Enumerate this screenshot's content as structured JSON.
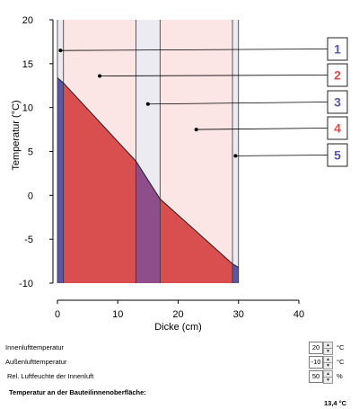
{
  "chart_data": {
    "type": "area",
    "title": "",
    "xlabel": "Dicke (cm)",
    "ylabel": "Temperatur (°C)",
    "xlim": [
      0,
      40
    ],
    "ylim": [
      -10,
      20
    ],
    "xticks": [
      "0",
      "10",
      "20",
      "30",
      "40"
    ],
    "yticks": [
      "20",
      "15",
      "10",
      "5",
      "0",
      "-5",
      "-10"
    ],
    "grid": false,
    "layers": [
      {
        "x": [
          0,
          1
        ],
        "color_bg": "#ecebf2",
        "color_fill": "#5a58a6"
      },
      {
        "x": [
          1,
          13
        ],
        "color_bg": "#fbe5e5",
        "color_fill": "#d94e4e"
      },
      {
        "x": [
          13,
          17
        ],
        "color_bg": "#ecebf2",
        "color_fill": "#8e4e8c"
      },
      {
        "x": [
          17,
          29
        ],
        "color_bg": "#fbe5e5",
        "color_fill": "#d94e4e"
      },
      {
        "x": [
          29,
          30
        ],
        "color_bg": "#ecebf2",
        "color_fill": "#5a58a6"
      }
    ],
    "temperature_profile": {
      "x": [
        0,
        1,
        13,
        17,
        29,
        30
      ],
      "y": [
        13.4,
        12.8,
        3.9,
        -0.4,
        -7.8,
        -8.2
      ]
    },
    "callouts": [
      {
        "label": "1",
        "x": 0.5,
        "y": 16.5,
        "color": "#5a58a6"
      },
      {
        "label": "2",
        "x": 7,
        "y": 13.6,
        "color": "#d94e4e"
      },
      {
        "label": "3",
        "x": 15,
        "y": 10.4,
        "color": "#5a58a6"
      },
      {
        "label": "4",
        "x": 23,
        "y": 7.5,
        "color": "#d94e4e"
      },
      {
        "label": "5",
        "x": 29.5,
        "y": 4.5,
        "color": "#5a58a6"
      }
    ]
  },
  "form": {
    "rows": [
      {
        "label": "Innenlufttemperatur",
        "value": "20",
        "unit": "°C"
      },
      {
        "label": "Außenlufttemperatur",
        "value": "-10",
        "unit": "°C"
      },
      {
        "label": "Rel. Luftfeuchte der Innenluft",
        "value": "50",
        "unit": "%"
      }
    ],
    "result_label": "Temperatur an der Bauteilinnenoberfläche:",
    "result_value": "13,4 °C"
  }
}
